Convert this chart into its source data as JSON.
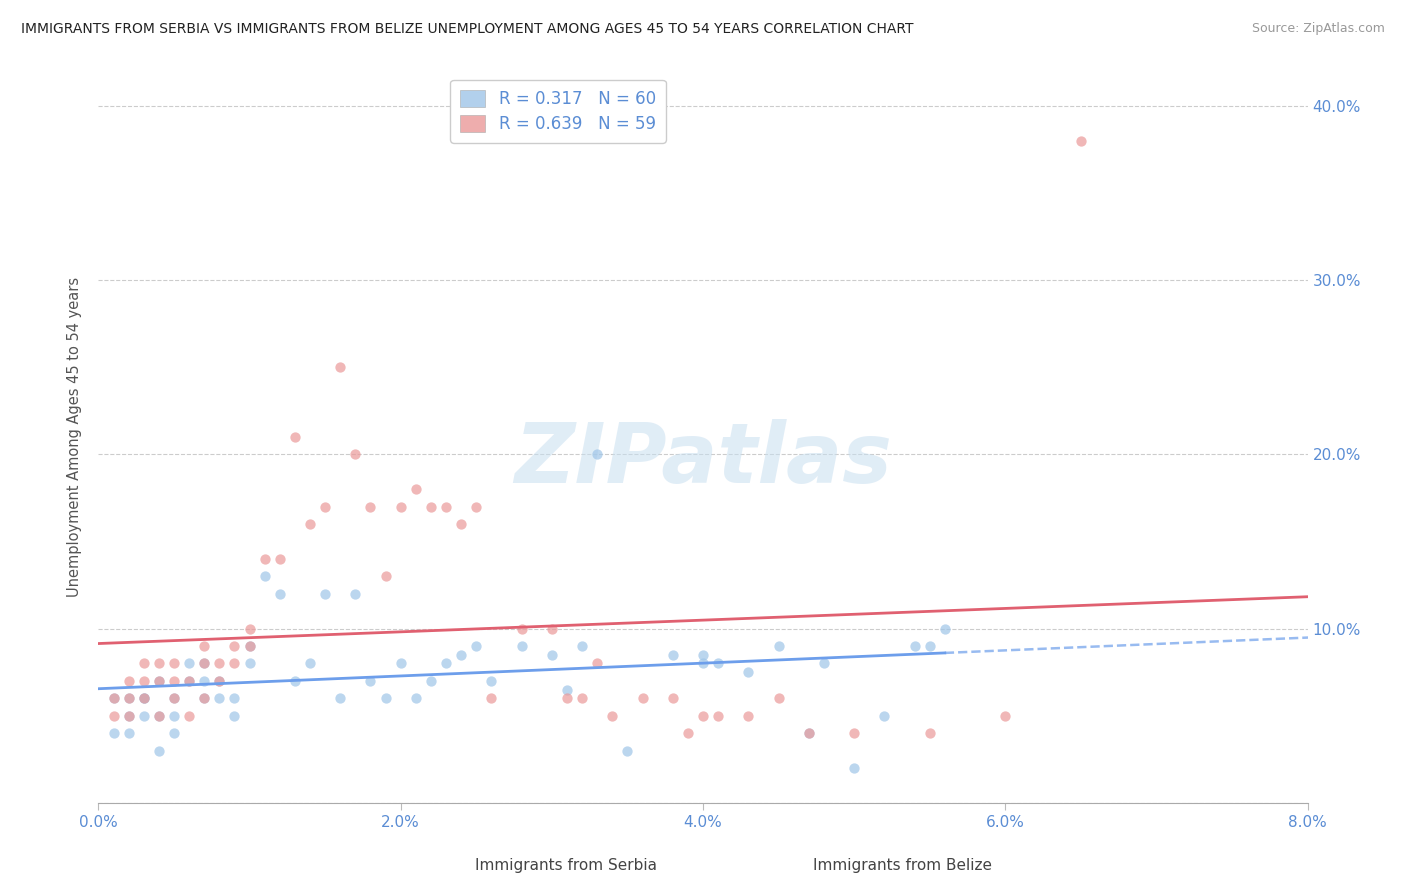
{
  "title": "IMMIGRANTS FROM SERBIA VS IMMIGRANTS FROM BELIZE UNEMPLOYMENT AMONG AGES 45 TO 54 YEARS CORRELATION CHART",
  "source": "Source: ZipAtlas.com",
  "ylabel": "Unemployment Among Ages 45 to 54 years",
  "xlim": [
    0.0,
    0.08
  ],
  "ylim": [
    0.0,
    0.42
  ],
  "xticks": [
    0.0,
    0.02,
    0.04,
    0.06,
    0.08
  ],
  "xticklabels": [
    "0.0%",
    "2.0%",
    "4.0%",
    "6.0%",
    "8.0%"
  ],
  "yticks": [
    0.0,
    0.1,
    0.2,
    0.3,
    0.4
  ],
  "yticklabels_right": [
    "",
    "10.0%",
    "20.0%",
    "30.0%",
    "40.0%"
  ],
  "serbia_color": "#9fc5e8",
  "belize_color": "#ea9999",
  "serbia_R": "0.317",
  "serbia_N": "60",
  "belize_R": "0.639",
  "belize_N": "59",
  "serbia_line_color": "#6d9eeb",
  "belize_line_color": "#e06070",
  "watermark_text": "ZIPatlas",
  "legend_serbia_label": "Immigrants from Serbia",
  "legend_belize_label": "Immigrants from Belize",
  "serbia_scatter_x": [
    0.001,
    0.001,
    0.002,
    0.002,
    0.002,
    0.003,
    0.003,
    0.003,
    0.004,
    0.004,
    0.004,
    0.005,
    0.005,
    0.005,
    0.006,
    0.006,
    0.007,
    0.007,
    0.007,
    0.008,
    0.008,
    0.009,
    0.009,
    0.01,
    0.01,
    0.011,
    0.012,
    0.013,
    0.014,
    0.015,
    0.016,
    0.017,
    0.018,
    0.019,
    0.02,
    0.021,
    0.022,
    0.023,
    0.024,
    0.025,
    0.026,
    0.028,
    0.03,
    0.031,
    0.032,
    0.033,
    0.035,
    0.038,
    0.04,
    0.04,
    0.041,
    0.043,
    0.045,
    0.047,
    0.048,
    0.05,
    0.052,
    0.054,
    0.055,
    0.056
  ],
  "serbia_scatter_y": [
    0.04,
    0.06,
    0.05,
    0.04,
    0.06,
    0.06,
    0.05,
    0.06,
    0.03,
    0.05,
    0.07,
    0.04,
    0.06,
    0.05,
    0.07,
    0.08,
    0.06,
    0.07,
    0.08,
    0.06,
    0.07,
    0.05,
    0.06,
    0.08,
    0.09,
    0.13,
    0.12,
    0.07,
    0.08,
    0.12,
    0.06,
    0.12,
    0.07,
    0.06,
    0.08,
    0.06,
    0.07,
    0.08,
    0.085,
    0.09,
    0.07,
    0.09,
    0.085,
    0.065,
    0.09,
    0.2,
    0.03,
    0.085,
    0.085,
    0.08,
    0.08,
    0.075,
    0.09,
    0.04,
    0.08,
    0.02,
    0.05,
    0.09,
    0.09,
    0.1
  ],
  "belize_scatter_x": [
    0.001,
    0.001,
    0.002,
    0.002,
    0.002,
    0.003,
    0.003,
    0.003,
    0.004,
    0.004,
    0.004,
    0.005,
    0.005,
    0.005,
    0.006,
    0.006,
    0.007,
    0.007,
    0.007,
    0.008,
    0.008,
    0.009,
    0.009,
    0.01,
    0.01,
    0.011,
    0.012,
    0.013,
    0.014,
    0.015,
    0.016,
    0.017,
    0.018,
    0.019,
    0.02,
    0.021,
    0.022,
    0.023,
    0.024,
    0.025,
    0.026,
    0.028,
    0.03,
    0.031,
    0.032,
    0.033,
    0.034,
    0.036,
    0.038,
    0.039,
    0.04,
    0.041,
    0.043,
    0.045,
    0.047,
    0.05,
    0.055,
    0.06,
    0.065
  ],
  "belize_scatter_y": [
    0.05,
    0.06,
    0.05,
    0.06,
    0.07,
    0.06,
    0.07,
    0.08,
    0.05,
    0.07,
    0.08,
    0.06,
    0.07,
    0.08,
    0.05,
    0.07,
    0.06,
    0.08,
    0.09,
    0.07,
    0.08,
    0.08,
    0.09,
    0.09,
    0.1,
    0.14,
    0.14,
    0.21,
    0.16,
    0.17,
    0.25,
    0.2,
    0.17,
    0.13,
    0.17,
    0.18,
    0.17,
    0.17,
    0.16,
    0.17,
    0.06,
    0.1,
    0.1,
    0.06,
    0.06,
    0.08,
    0.05,
    0.06,
    0.06,
    0.04,
    0.05,
    0.05,
    0.05,
    0.06,
    0.04,
    0.04,
    0.04,
    0.05,
    0.38
  ]
}
